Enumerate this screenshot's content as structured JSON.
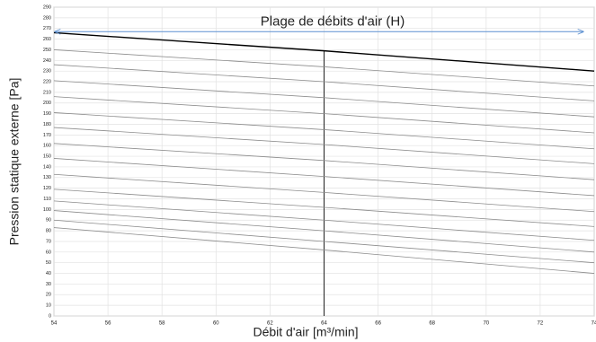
{
  "chart_data": {
    "type": "line",
    "xlabel": "Débit d'air [m³/min]",
    "ylabel": "Pression statique externe [Pa]",
    "x": [
      54,
      64,
      74
    ],
    "series": [
      {
        "color": "#000000",
        "values": [
          266,
          249,
          230
        ]
      },
      {
        "color": "#8c8c8c",
        "values": [
          250,
          234,
          216
        ]
      },
      {
        "color": "#8c8c8c",
        "values": [
          236,
          220,
          202
        ]
      },
      {
        "color": "#8c8c8c",
        "values": [
          221,
          205,
          187
        ]
      },
      {
        "color": "#8c8c8c",
        "values": [
          206,
          190,
          172
        ]
      },
      {
        "color": "#8c8c8c",
        "values": [
          191,
          175,
          157
        ]
      },
      {
        "color": "#8c8c8c",
        "values": [
          177,
          161,
          143
        ]
      },
      {
        "color": "#8c8c8c",
        "values": [
          162,
          146,
          128
        ]
      },
      {
        "color": "#8c8c8c",
        "values": [
          148,
          131,
          113
        ]
      },
      {
        "color": "#8c8c8c",
        "values": [
          133,
          116,
          98
        ]
      },
      {
        "color": "#8c8c8c",
        "values": [
          119,
          102,
          84
        ]
      },
      {
        "color": "#8c8c8c",
        "values": [
          108,
          90,
          71
        ]
      },
      {
        "color": "#8c8c8c",
        "values": [
          99,
          80,
          60
        ]
      },
      {
        "color": "#8c8c8c",
        "values": [
          90,
          70,
          50
        ]
      },
      {
        "color": "#8c8c8c",
        "values": [
          83,
          62,
          40
        ]
      }
    ],
    "xlim": [
      54,
      74
    ],
    "xticks": [
      54,
      56,
      58,
      60,
      62,
      64,
      66,
      68,
      70,
      72,
      74
    ],
    "ylim": [
      0,
      290
    ],
    "yticks": [
      0,
      10,
      20,
      30,
      40,
      50,
      60,
      70,
      80,
      90,
      100,
      110,
      120,
      130,
      140,
      150,
      160,
      170,
      180,
      190,
      200,
      210,
      220,
      230,
      240,
      250,
      260,
      270,
      280,
      290
    ],
    "grid": true,
    "range_arrow": {
      "text": "Plage de débits d'air (H)",
      "y": 267,
      "x1": 54,
      "x2": 74,
      "color": "#5b8fd0"
    },
    "marker_line": {
      "x": 64,
      "y": 249
    }
  }
}
